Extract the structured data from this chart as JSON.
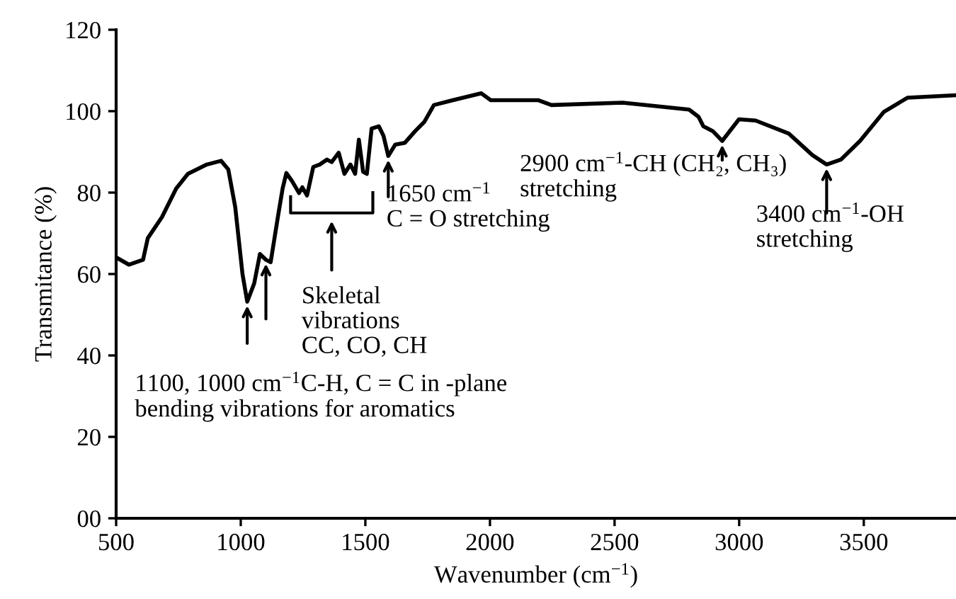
{
  "chart_data": {
    "type": "line",
    "xlabel": "Wavenumber (cm$^{−1}$)",
    "ylabel": "Transmitance (%)",
    "xlim": [
      500,
      3870
    ],
    "xticks": [
      500,
      1000,
      1500,
      2000,
      2500,
      3000,
      3500
    ],
    "ylim": [
      0,
      120
    ],
    "yticks": [
      {
        "value": 0,
        "label": "00"
      },
      20,
      40,
      60,
      80,
      100,
      120
    ],
    "grid": false,
    "legend": false,
    "marker": "none",
    "line_style": "solid",
    "series": [
      {
        "color": "#000000",
        "x": [
          500,
          551,
          608,
          627,
          684,
          741,
          788,
          864,
          921,
          950,
          978,
          1007,
          1026,
          1054,
          1077,
          1101,
          1120,
          1149,
          1168,
          1183,
          1206,
          1234,
          1247,
          1266,
          1291,
          1317,
          1346,
          1365,
          1393,
          1416,
          1440,
          1459,
          1474,
          1491,
          1506,
          1525,
          1554,
          1573,
          1592,
          1620,
          1658,
          1700,
          1737,
          1775,
          1851,
          1965,
          2003,
          2193,
          2247,
          2532,
          2799,
          2837,
          2856,
          2894,
          2932,
          2999,
          3066,
          3199,
          3294,
          3351,
          3408,
          3485,
          3580,
          3675,
          3870
        ],
        "values": [
          64.1,
          62.3,
          63.5,
          68.8,
          74,
          81,
          84.6,
          86.9,
          87.8,
          85.7,
          76.4,
          60,
          53.2,
          57.7,
          64.9,
          63.5,
          62.9,
          74,
          81,
          84.8,
          82.8,
          79.9,
          81.3,
          79.3,
          86.3,
          86.9,
          88.1,
          87.5,
          89.8,
          84.6,
          86.9,
          84.6,
          93,
          85.1,
          84.6,
          95.7,
          96.3,
          93.9,
          89,
          91.8,
          92.2,
          95.1,
          97.4,
          101.5,
          102.7,
          104.4,
          102.7,
          102.7,
          101.5,
          102.1,
          100.4,
          98.6,
          96.3,
          95.1,
          92.7,
          98,
          97.7,
          94.5,
          89.2,
          86.9,
          88.1,
          92.7,
          99.8,
          103.3,
          103.9
        ]
      }
    ],
    "annotations": [
      {
        "text": "1100, 1000 cm$^{−1}$C-H, C = C in -plane\nbending vibrations for aromatics",
        "x": 1026,
        "y": 53.2
      },
      "Skeletal\nvibrations\nCC, CO, CH",
      {
        "text": "1650 cm$^{−1}$\nC = O stretching",
        "x": 1592,
        "y": 89
      },
      {
        "text": "2900 cm$^{−1}$-CH (CH₂, CH₃)\nstretching",
        "x": 2932,
        "y": 92.7
      },
      {
        "text": "3400 cm$^{−1}$-OH\nstretching",
        "x": 3351,
        "y": 86.9
      }
    ]
  }
}
